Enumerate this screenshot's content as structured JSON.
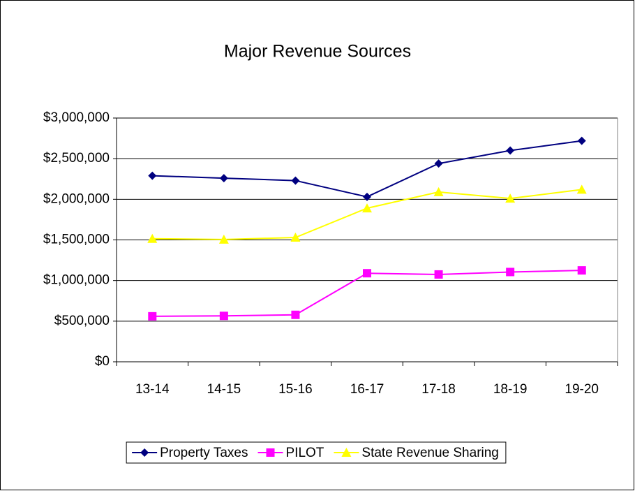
{
  "chart_data": {
    "type": "line",
    "title": "Major Revenue Sources",
    "categories": [
      "13-14",
      "14-15",
      "15-16",
      "16-17",
      "17-18",
      "18-19",
      "19-20"
    ],
    "series": [
      {
        "name": "Property Taxes",
        "color": "#000080",
        "marker": "diamond",
        "values": [
          2290000,
          2260000,
          2230000,
          2030000,
          2440000,
          2600000,
          2720000
        ]
      },
      {
        "name": "PILOT",
        "color": "#ff00ff",
        "marker": "square",
        "values": [
          560000,
          565000,
          578000,
          1090000,
          1075000,
          1105000,
          1125000
        ]
      },
      {
        "name": "State Revenue Sharing",
        "color": "#ffff00",
        "marker": "triangle",
        "values": [
          1515000,
          1505000,
          1530000,
          1890000,
          2090000,
          2010000,
          2120000
        ]
      }
    ],
    "ylim": [
      0,
      3000000
    ],
    "yticks": [
      {
        "value": 0,
        "label": "$0"
      },
      {
        "value": 500000,
        "label": "$500,000"
      },
      {
        "value": 1000000,
        "label": "$1,000,000"
      },
      {
        "value": 1500000,
        "label": "$1,500,000"
      },
      {
        "value": 2000000,
        "label": "$2,000,000"
      },
      {
        "value": 2500000,
        "label": "$2,500,000"
      },
      {
        "value": 3000000,
        "label": "$3,000,000"
      }
    ],
    "grid": true,
    "legend": "bottom"
  }
}
